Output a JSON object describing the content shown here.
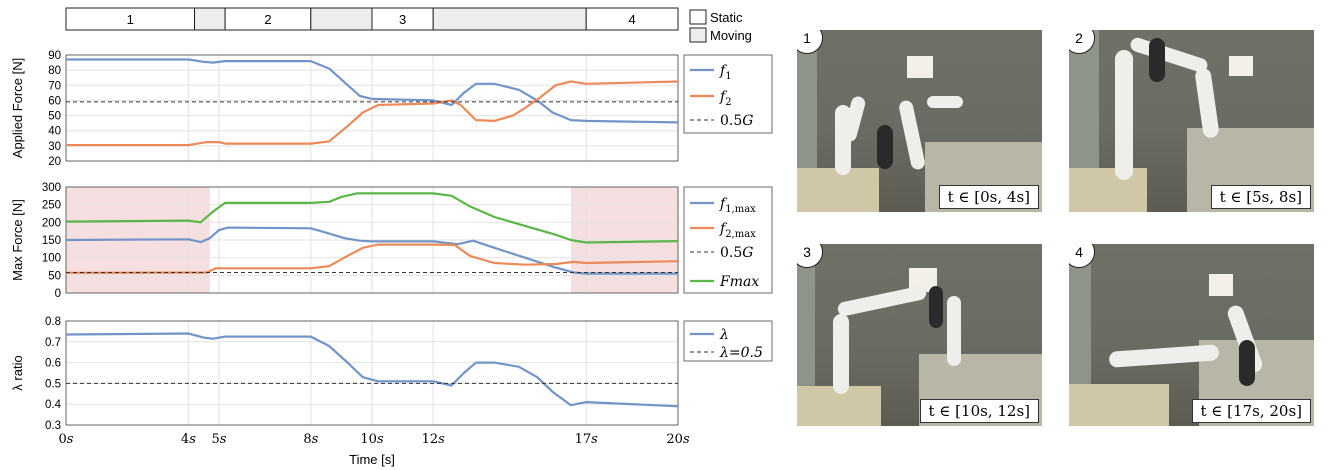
{
  "phase_bar": {
    "segments": [
      {
        "label": "1",
        "start": 0,
        "end": 4.2,
        "state": "static"
      },
      {
        "label": "",
        "start": 4.2,
        "end": 5.2,
        "state": "moving"
      },
      {
        "label": "2",
        "start": 5.2,
        "end": 8.0,
        "state": "static"
      },
      {
        "label": "",
        "start": 8.0,
        "end": 10.0,
        "state": "moving"
      },
      {
        "label": "3",
        "start": 10.0,
        "end": 12.0,
        "state": "static"
      },
      {
        "label": "",
        "start": 12.0,
        "end": 17.0,
        "state": "moving"
      },
      {
        "label": "4",
        "start": 17.0,
        "end": 20.0,
        "state": "static"
      }
    ],
    "legend": {
      "static": "Static",
      "moving": "Moving"
    }
  },
  "time_axis": {
    "ticks": [
      0,
      4,
      5,
      8,
      10,
      12,
      17,
      20
    ],
    "tick_labels": [
      "0s",
      "4s",
      "5s",
      "8s",
      "10s",
      "12s",
      "17s",
      "20s"
    ],
    "label": "Time [s]"
  },
  "colors": {
    "blue": "#7394c8",
    "orange": "#ec8a5a",
    "green": "#5cb549",
    "shade": "#f6dfe0",
    "moving": "#ededed"
  },
  "chart_data": [
    {
      "type": "line",
      "ylabel": "Applied Force [N]",
      "ylim": [
        20,
        90
      ],
      "yticks": [
        20,
        30,
        40,
        50,
        60,
        70,
        80,
        90
      ],
      "xlim": [
        0,
        20
      ],
      "grid": true,
      "legend": "right",
      "series": [
        {
          "name": "f1",
          "color": "blue",
          "x": [
            0,
            4,
            4.5,
            4.8,
            5.2,
            8,
            8.6,
            9.1,
            9.6,
            10,
            12,
            12.6,
            13,
            13.4,
            14,
            14.8,
            15.4,
            15.9,
            16.5,
            17,
            20
          ],
          "y": [
            87,
            87,
            85.5,
            85,
            86,
            86,
            81,
            72,
            63,
            61,
            60,
            57,
            65,
            71,
            71,
            67,
            60,
            52,
            47,
            46.5,
            45.5
          ]
        },
        {
          "name": "f2",
          "color": "orange",
          "x": [
            0,
            4,
            4.6,
            5,
            5.2,
            8,
            8.6,
            9.2,
            9.7,
            10.2,
            12,
            12.6,
            12.9,
            13.4,
            14,
            14.6,
            15,
            15.5,
            16,
            16.5,
            17,
            20
          ],
          "y": [
            30.5,
            30.5,
            32.5,
            32.5,
            31.5,
            31.5,
            33,
            43,
            52,
            57,
            58,
            60,
            57,
            47,
            46.5,
            50,
            55,
            62,
            70,
            72.5,
            71,
            72.5
          ]
        },
        {
          "name": "0.5G",
          "color": "#333333",
          "dashed": true,
          "x": [
            0,
            20
          ],
          "y": [
            59,
            59
          ]
        }
      ]
    },
    {
      "type": "line",
      "ylabel": "Max Force [N]",
      "ylim": [
        0,
        300
      ],
      "yticks": [
        0,
        50,
        100,
        150,
        200,
        250,
        300
      ],
      "xlim": [
        0,
        20
      ],
      "grid": true,
      "legend": "right",
      "shaded_x": [
        [
          0,
          4.7
        ],
        [
          16.5,
          20
        ]
      ],
      "series": [
        {
          "name": "f1,max",
          "color": "blue",
          "x": [
            0,
            4,
            4.4,
            4.7,
            5,
            5.3,
            8,
            8.6,
            9.1,
            9.6,
            10,
            12,
            12.8,
            13.3,
            14,
            15,
            16,
            16.6,
            17,
            20
          ],
          "y": [
            150,
            152,
            144,
            155,
            178,
            185,
            183,
            168,
            155,
            148,
            146,
            146,
            138,
            148,
            128,
            100,
            72,
            58,
            55,
            55
          ]
        },
        {
          "name": "f2,max",
          "color": "orange",
          "x": [
            0,
            4.6,
            4.9,
            5.2,
            8,
            8.6,
            9.2,
            9.7,
            10.2,
            12,
            12.7,
            13.2,
            14,
            15,
            16,
            16.6,
            17,
            20
          ],
          "y": [
            57,
            58,
            70,
            70,
            70,
            76,
            105,
            128,
            137,
            137,
            136,
            105,
            85,
            80,
            82,
            88,
            85,
            90
          ]
        },
        {
          "name": "0.5G",
          "color": "#333333",
          "dashed": true,
          "x": [
            0,
            20
          ],
          "y": [
            58,
            58
          ]
        },
        {
          "name": "Fmax",
          "color": "green",
          "x": [
            0,
            4,
            4.4,
            4.8,
            5.2,
            8,
            8.6,
            9,
            9.5,
            10,
            12,
            12.6,
            13.2,
            14,
            15,
            16,
            16.5,
            17,
            20
          ],
          "y": [
            202,
            205,
            200,
            230,
            255,
            255,
            258,
            272,
            282,
            282,
            282,
            275,
            245,
            215,
            190,
            165,
            150,
            143,
            147
          ]
        }
      ]
    },
    {
      "type": "line",
      "ylabel": "λ ratio",
      "ylim": [
        0.3,
        0.8
      ],
      "yticks": [
        0.3,
        0.4,
        0.5,
        0.6,
        0.7,
        0.8
      ],
      "xlim": [
        0,
        20
      ],
      "grid": true,
      "legend": "right",
      "series": [
        {
          "name": "λ",
          "color": "blue",
          "x": [
            0,
            4,
            4.5,
            4.8,
            5.2,
            8,
            8.6,
            9.2,
            9.7,
            10.2,
            12,
            12.6,
            13,
            13.4,
            14,
            14.8,
            15.4,
            15.9,
            16.5,
            17,
            20
          ],
          "y": [
            0.735,
            0.74,
            0.72,
            0.715,
            0.725,
            0.725,
            0.68,
            0.6,
            0.53,
            0.51,
            0.51,
            0.49,
            0.55,
            0.6,
            0.6,
            0.58,
            0.53,
            0.46,
            0.395,
            0.41,
            0.39
          ]
        },
        {
          "name": "λ=0.5",
          "color": "#333333",
          "dashed": true,
          "x": [
            0,
            20
          ],
          "y": [
            0.5,
            0.5
          ]
        }
      ]
    }
  ],
  "photos": [
    {
      "badge": "1",
      "caption": "t ∈ [0s, 4s]"
    },
    {
      "badge": "2",
      "caption": "t ∈ [5s, 8s]"
    },
    {
      "badge": "3",
      "caption": "t ∈ [10s, 12s]"
    },
    {
      "badge": "4",
      "caption": "t ∈ [17s, 20s]"
    }
  ]
}
